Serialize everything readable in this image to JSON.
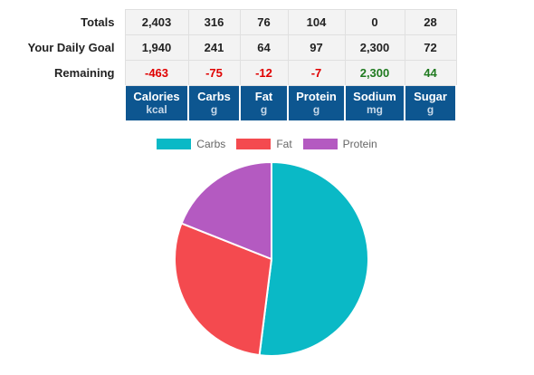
{
  "table": {
    "rows": [
      {
        "label": "Totals",
        "values": [
          "2,403",
          "316",
          "76",
          "104",
          "0",
          "28"
        ]
      },
      {
        "label": "Your Daily Goal",
        "values": [
          "1,940",
          "241",
          "64",
          "97",
          "2,300",
          "72"
        ]
      },
      {
        "label": "Remaining",
        "values": [
          "-463",
          "-75",
          "-12",
          "-7",
          "2,300",
          "44"
        ]
      }
    ],
    "headers": [
      {
        "name": "Calories",
        "unit": "kcal"
      },
      {
        "name": "Carbs",
        "unit": "g"
      },
      {
        "name": "Fat",
        "unit": "g"
      },
      {
        "name": "Protein",
        "unit": "g"
      },
      {
        "name": "Sodium",
        "unit": "mg"
      },
      {
        "name": "Sugar",
        "unit": "g"
      }
    ]
  },
  "colors": {
    "header_bg": "#0d5690",
    "negative": "#e00000",
    "positive": "#1f7a1f",
    "carbs": "#0ab9c6",
    "fat": "#f44a4f",
    "protein": "#b45ac1"
  },
  "chart_data": {
    "type": "pie",
    "labels": [
      "Carbs",
      "Fat",
      "Protein"
    ],
    "values": [
      52,
      29,
      19
    ],
    "colors": [
      "#0ab9c6",
      "#f44a4f",
      "#b45ac1"
    ],
    "legend_position": "top"
  }
}
